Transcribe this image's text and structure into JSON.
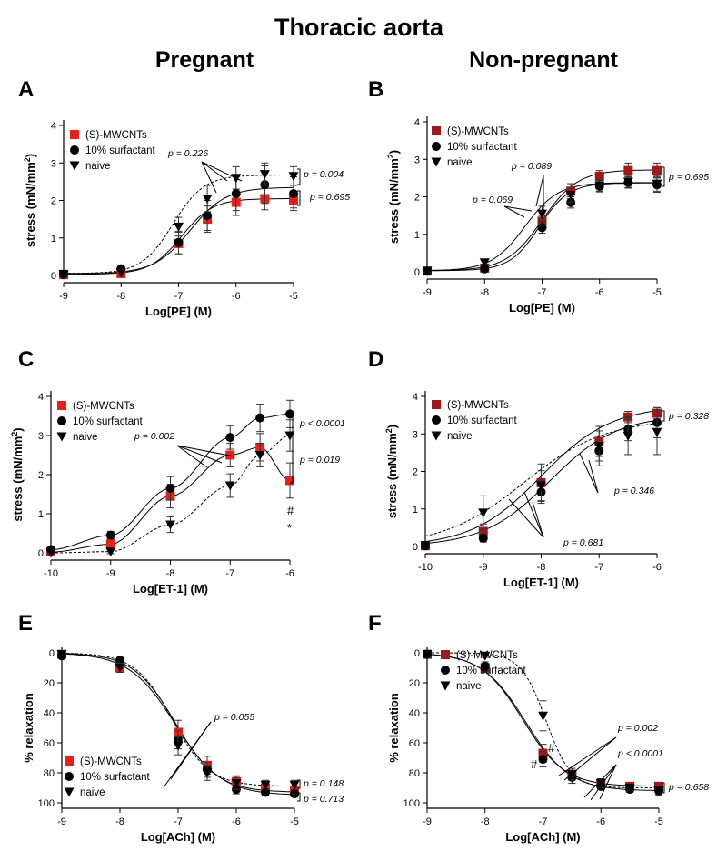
{
  "figure": {
    "title": "Thoracic aorta",
    "columns": [
      "Pregnant",
      "Non-pregnant"
    ]
  },
  "chart_data": [
    {
      "id": "A",
      "type": "line",
      "label": "A",
      "xlabel": "Log[PE] (M)",
      "ylabel": "stress (mN/mm2)",
      "x": [
        -9,
        -8,
        -7,
        -6.5,
        -6,
        -5.5,
        -5
      ],
      "xlim": [
        -9,
        -5
      ],
      "ylim": [
        0,
        4
      ],
      "xticks": [
        -9,
        -8,
        -7,
        -6,
        -5
      ],
      "yticks": [
        0,
        1,
        2,
        3,
        4
      ],
      "legend_position": "top-left",
      "series": [
        {
          "name": "(S)-MWCNTs",
          "marker": "square",
          "color": "#e8201c",
          "line": "solid",
          "values": [
            0.02,
            0.05,
            0.85,
            1.5,
            1.95,
            2.05,
            2.0
          ],
          "errors": [
            0.05,
            0.1,
            0.3,
            0.35,
            0.35,
            0.3,
            0.2
          ]
        },
        {
          "name": "10% surfactant",
          "marker": "circle",
          "color": "#000000",
          "line": "solid",
          "values": [
            0.03,
            0.18,
            0.88,
            1.6,
            2.18,
            2.42,
            2.18
          ],
          "errors": [
            0.05,
            0.1,
            0.3,
            0.4,
            0.45,
            0.5,
            0.45
          ]
        },
        {
          "name": "naive",
          "marker": "triangle",
          "color": "#000000",
          "line": "dashed",
          "values": [
            0.04,
            0.08,
            1.3,
            2.05,
            2.6,
            2.7,
            2.65
          ],
          "errors": [
            0.05,
            0.1,
            0.25,
            0.35,
            0.3,
            0.3,
            0.25
          ]
        }
      ],
      "annotations": [
        "p = 0.226",
        "p = 0.004",
        "p = 0.695"
      ]
    },
    {
      "id": "B",
      "type": "line",
      "label": "B",
      "xlabel": "Log[PE] (M)",
      "ylabel": "stress (mN/mm2)",
      "x": [
        -9,
        -8,
        -7,
        -6.5,
        -6,
        -5.5,
        -5
      ],
      "xlim": [
        -9,
        -5
      ],
      "ylim": [
        0,
        4
      ],
      "xticks": [
        -9,
        -8,
        -7,
        -6,
        -5
      ],
      "yticks": [
        0,
        1,
        2,
        3,
        4
      ],
      "legend_position": "top-left",
      "series": [
        {
          "name": "(S)-MWCNTs",
          "marker": "square",
          "color": "#a01818",
          "line": "solid",
          "values": [
            0.02,
            0.1,
            1.35,
            2.15,
            2.55,
            2.7,
            2.7
          ],
          "errors": [
            0.03,
            0.05,
            0.15,
            0.2,
            0.15,
            0.2,
            0.2
          ]
        },
        {
          "name": "10% surfactant",
          "marker": "circle",
          "color": "#000000",
          "line": "solid",
          "values": [
            0.02,
            0.08,
            1.18,
            1.85,
            2.28,
            2.38,
            2.32
          ],
          "errors": [
            0.03,
            0.05,
            0.15,
            0.15,
            0.15,
            0.15,
            0.2
          ]
        },
        {
          "name": "naive",
          "marker": "triangle",
          "color": "#000000",
          "line": "solid",
          "values": [
            0.02,
            0.25,
            1.55,
            2.05,
            2.3,
            2.4,
            2.35
          ],
          "errors": [
            0.03,
            0.05,
            0.2,
            0.2,
            0.15,
            0.15,
            0.2
          ]
        }
      ],
      "annotations": [
        "p = 0.089",
        "p = 0.069",
        "p = 0.695"
      ]
    },
    {
      "id": "C",
      "type": "line",
      "label": "C",
      "xlabel": "Log[ET-1] (M)",
      "ylabel": "stress (mN/mm2)",
      "x": [
        -10,
        -9,
        -8,
        -7,
        -6.5,
        -6
      ],
      "xlim": [
        -10,
        -6
      ],
      "ylim": [
        0,
        4
      ],
      "xticks": [
        -10,
        -9,
        -8,
        -7,
        -6
      ],
      "yticks": [
        0,
        1,
        2,
        3,
        4
      ],
      "legend_position": "top-left",
      "series": [
        {
          "name": "(S)-MWCNTs",
          "marker": "square",
          "color": "#e8201c",
          "line": "solid",
          "values": [
            0.02,
            0.22,
            1.45,
            2.5,
            2.7,
            1.85
          ],
          "errors": [
            0.03,
            0.15,
            0.3,
            0.3,
            0.35,
            0.45
          ]
        },
        {
          "name": "10% surfactant",
          "marker": "circle",
          "color": "#000000",
          "line": "solid",
          "values": [
            0.08,
            0.45,
            1.65,
            2.95,
            3.45,
            3.55
          ],
          "errors": [
            0.05,
            0.1,
            0.3,
            0.3,
            0.35,
            0.35
          ]
        },
        {
          "name": "naive",
          "marker": "triangle",
          "color": "#000000",
          "line": "dashed",
          "values": [
            0.0,
            0.03,
            0.72,
            1.72,
            2.5,
            3.0
          ],
          "errors": [
            0.03,
            0.05,
            0.2,
            0.3,
            0.3,
            0.4
          ]
        }
      ],
      "annotations": [
        "p = 0.002",
        "p < 0.0001",
        "p = 0.019",
        "#",
        "*"
      ]
    },
    {
      "id": "D",
      "type": "line",
      "label": "D",
      "xlabel": "Log[ET-1] (M)",
      "ylabel": "stress (mN/mm2)",
      "x": [
        -10,
        -9,
        -8,
        -7,
        -6.5,
        -6
      ],
      "xlim": [
        -10,
        -6
      ],
      "ylim": [
        0,
        4
      ],
      "xticks": [
        -10,
        -9,
        -8,
        -7,
        -6
      ],
      "yticks": [
        0,
        1,
        2,
        3,
        4
      ],
      "legend_position": "top-left",
      "series": [
        {
          "name": "(S)-MWCNTs",
          "marker": "square",
          "color": "#a01818",
          "line": "solid",
          "values": [
            0.02,
            0.4,
            1.7,
            2.8,
            3.45,
            3.55
          ],
          "errors": [
            0.03,
            0.2,
            0.5,
            0.4,
            0.15,
            0.15
          ]
        },
        {
          "name": "10% surfactant",
          "marker": "circle",
          "color": "#000000",
          "line": "solid",
          "values": [
            0.02,
            0.22,
            1.45,
            2.55,
            3.12,
            3.3
          ],
          "errors": [
            0.03,
            0.1,
            0.3,
            0.4,
            0.3,
            0.4
          ]
        },
        {
          "name": "naive",
          "marker": "triangle",
          "color": "#000000",
          "line": "dashed",
          "values": [
            0.03,
            0.9,
            1.62,
            2.68,
            2.95,
            3.05
          ],
          "errors": [
            0.03,
            0.45,
            0.4,
            0.4,
            0.5,
            0.6
          ]
        }
      ],
      "annotations": [
        "p = 0.328",
        "p = 0.346",
        "p = 0.681"
      ]
    },
    {
      "id": "E",
      "type": "line",
      "label": "E",
      "xlabel": "Log[ACh] (M)",
      "ylabel": "% relaxation",
      "x": [
        -9,
        -8,
        -7,
        -6.5,
        -6,
        -5.5,
        -5
      ],
      "xlim": [
        -9,
        -5
      ],
      "ylim": [
        0,
        100
      ],
      "y_inverted": true,
      "xticks": [
        -9,
        -8,
        -7,
        -6,
        -5
      ],
      "yticks": [
        0,
        20,
        40,
        60,
        80,
        100
      ],
      "legend_position": "bottom-left",
      "series": [
        {
          "name": "(S)-MWCNTs",
          "marker": "square",
          "color": "#e8201c",
          "line": "solid",
          "values": [
            1,
            10,
            53,
            75,
            86,
            90,
            92
          ],
          "errors": [
            1,
            3,
            8,
            6,
            4,
            3,
            3
          ]
        },
        {
          "name": "10% surfactant",
          "marker": "circle",
          "color": "#000000",
          "line": "solid",
          "values": [
            2,
            5,
            58,
            78,
            91,
            93,
            94
          ],
          "errors": [
            1,
            2,
            6,
            5,
            3,
            2,
            2
          ]
        },
        {
          "name": "naive",
          "marker": "triangle",
          "color": "#000000",
          "line": "dashed",
          "values": [
            1,
            10,
            62,
            80,
            87,
            88,
            88
          ],
          "errors": [
            1,
            3,
            6,
            5,
            4,
            3,
            3
          ]
        }
      ],
      "annotations": [
        "p = 0.055",
        "p = 0.148",
        "p = 0.713"
      ]
    },
    {
      "id": "F",
      "type": "line",
      "label": "F",
      "xlabel": "Log[ACh] (M)",
      "ylabel": "% relaxation",
      "x": [
        -9,
        -8,
        -7,
        -6.5,
        -6,
        -5.5,
        -5
      ],
      "xlim": [
        -9,
        -5
      ],
      "ylim": [
        0,
        100
      ],
      "y_inverted": true,
      "xticks": [
        -9,
        -8,
        -7,
        -6,
        -5
      ],
      "yticks": [
        0,
        20,
        40,
        60,
        80,
        100
      ],
      "legend_position": "top-right",
      "series": [
        {
          "name": "(S)-MWCNTs",
          "marker": "square",
          "color": "#a01818",
          "line": "solid",
          "values": [
            1,
            10,
            67,
            81,
            87,
            89,
            89
          ],
          "errors": [
            1,
            3,
            6,
            4,
            3,
            2,
            2
          ]
        },
        {
          "name": "10% surfactant",
          "marker": "circle",
          "color": "#000000",
          "line": "solid",
          "values": [
            1,
            9,
            71,
            83,
            89,
            91,
            92
          ],
          "errors": [
            1,
            3,
            5,
            4,
            2,
            2,
            2
          ]
        },
        {
          "name": "naive",
          "marker": "triangle",
          "color": "#000000",
          "line": "dashed",
          "values": [
            1,
            2,
            42,
            81,
            87,
            90,
            92
          ],
          "errors": [
            1,
            1,
            10,
            4,
            3,
            2,
            3
          ]
        }
      ],
      "annotations": [
        "p = 0.002",
        "p < 0.0001",
        "p = 0.658",
        "#",
        "#"
      ]
    }
  ]
}
